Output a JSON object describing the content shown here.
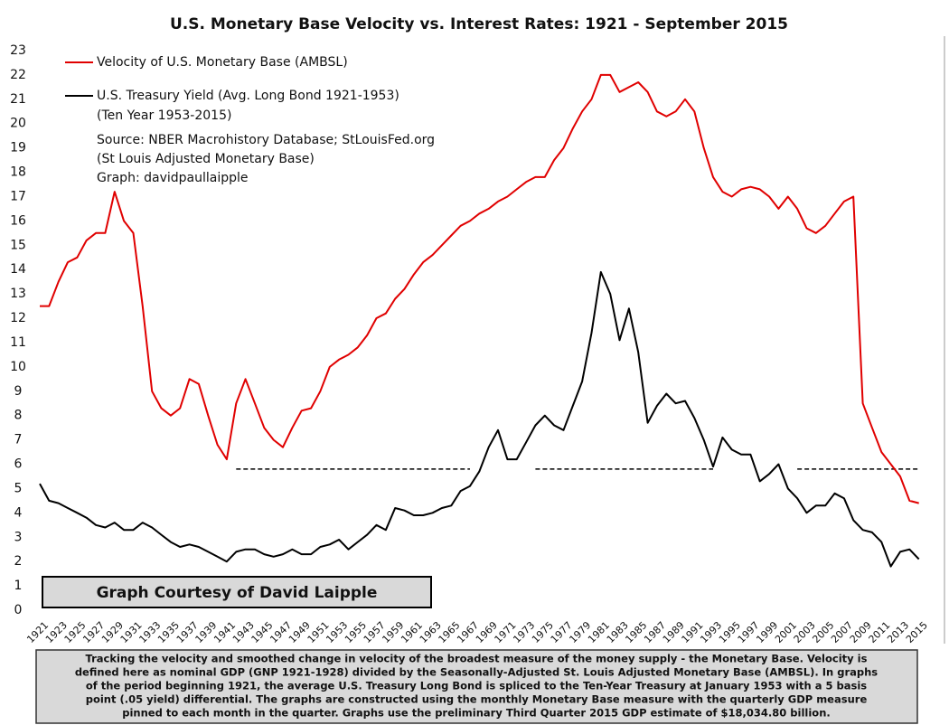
{
  "chart_data": {
    "type": "line",
    "title": "U.S. Monetary Base Velocity vs. Interest Rates: 1921 - September 2015",
    "x": [
      1921,
      1922,
      1923,
      1924,
      1925,
      1926,
      1927,
      1928,
      1929,
      1930,
      1931,
      1932,
      1933,
      1934,
      1935,
      1936,
      1937,
      1938,
      1939,
      1940,
      1941,
      1942,
      1943,
      1944,
      1945,
      1946,
      1947,
      1948,
      1949,
      1950,
      1951,
      1952,
      1953,
      1954,
      1955,
      1956,
      1957,
      1958,
      1959,
      1960,
      1961,
      1962,
      1963,
      1964,
      1965,
      1966,
      1967,
      1968,
      1969,
      1970,
      1971,
      1972,
      1973,
      1974,
      1975,
      1976,
      1977,
      1978,
      1979,
      1980,
      1981,
      1982,
      1983,
      1984,
      1985,
      1986,
      1987,
      1988,
      1989,
      1990,
      1991,
      1992,
      1993,
      1994,
      1995,
      1996,
      1997,
      1998,
      1999,
      2000,
      2001,
      2002,
      2003,
      2004,
      2005,
      2006,
      2007,
      2008,
      2009,
      2010,
      2011,
      2012,
      2013,
      2014,
      2015
    ],
    "series": [
      {
        "name": "Velocity of U.S. Monetary Base (AMBSL)",
        "color": "#e00000",
        "values": [
          12.5,
          12.5,
          13.5,
          14.3,
          14.5,
          15.2,
          15.5,
          15.5,
          17.2,
          16,
          15.5,
          12.5,
          9,
          8.3,
          8,
          8.3,
          9.5,
          9.3,
          8,
          6.8,
          6.2,
          8.5,
          9.5,
          8.5,
          7.5,
          7,
          6.7,
          7.5,
          8.2,
          8.3,
          9,
          10,
          10.3,
          10.5,
          10.8,
          11.3,
          12,
          12.2,
          12.8,
          13.2,
          13.8,
          14.3,
          14.6,
          15,
          15.4,
          15.8,
          16,
          16.3,
          16.5,
          16.8,
          17,
          17.3,
          17.6,
          17.8,
          17.8,
          18.5,
          19,
          19.8,
          20.5,
          21,
          22,
          22,
          21.3,
          21.5,
          21.7,
          21.3,
          20.5,
          20.3,
          20.5,
          21,
          20.5,
          19,
          17.8,
          17.2,
          17,
          17.3,
          17.4,
          17.3,
          17,
          16.5,
          17,
          16.5,
          15.7,
          15.5,
          15.8,
          16.3,
          16.8,
          17,
          8.5,
          7.5,
          6.5,
          6,
          5.5,
          4.5,
          4.4
        ]
      },
      {
        "name": "U.S. Treasury Yield (Avg. Long Bond 1921-1953)",
        "color": "#000000",
        "values": [
          5.2,
          4.5,
          4.4,
          4.2,
          4,
          3.8,
          3.5,
          3.4,
          3.6,
          3.3,
          3.3,
          3.6,
          3.4,
          3.1,
          2.8,
          2.6,
          2.7,
          2.6,
          2.4,
          2.2,
          2,
          2.4,
          2.5,
          2.5,
          2.3,
          2.2,
          2.3,
          2.5,
          2.3,
          2.3,
          2.6,
          2.7,
          2.9,
          2.5,
          2.8,
          3.1,
          3.5,
          3.3,
          4.2,
          4.1,
          3.9,
          3.9,
          4,
          4.2,
          4.3,
          4.9,
          5.1,
          5.7,
          6.7,
          7.4,
          6.2,
          6.2,
          6.9,
          7.6,
          8,
          7.6,
          7.4,
          8.4,
          9.4,
          11.4,
          13.9,
          13,
          11.1,
          12.4,
          10.6,
          7.7,
          8.4,
          8.9,
          8.5,
          8.6,
          7.9,
          7,
          5.9,
          7.1,
          6.6,
          6.4,
          6.4,
          5.3,
          5.6,
          6,
          5,
          4.6,
          4,
          4.3,
          4.3,
          4.8,
          4.6,
          3.7,
          3.3,
          3.2,
          2.8,
          1.8,
          2.4,
          2.5,
          2.1
        ]
      }
    ],
    "legend_note": "(Ten Year 1953-2015)",
    "source_lines": [
      "Source: NBER Macrohistory Database; StLouisFed.org",
      "(St Louis Adjusted Monetary Base)",
      "Graph: davidpaullaipple"
    ],
    "reference_lines": [
      {
        "y": 5.8,
        "x": [
          1942,
          1967
        ]
      },
      {
        "y": 5.8,
        "x": [
          1974,
          1993
        ]
      },
      {
        "y": 5.8,
        "x": [
          2002,
          2015
        ]
      }
    ],
    "xlim": [
      1921,
      2016
    ],
    "xticks": [
      1921,
      1923,
      1925,
      1927,
      1929,
      1931,
      1933,
      1935,
      1937,
      1939,
      1941,
      1943,
      1945,
      1947,
      1949,
      1951,
      1953,
      1955,
      1957,
      1959,
      1961,
      1963,
      1965,
      1967,
      1969,
      1971,
      1973,
      1975,
      1977,
      1979,
      1981,
      1983,
      1985,
      1987,
      1989,
      1991,
      1993,
      1995,
      1997,
      1999,
      2001,
      2003,
      2005,
      2007,
      2009,
      2011,
      2013,
      2015
    ],
    "ylim": [
      0,
      23
    ],
    "yticks": [
      0,
      1,
      2,
      3,
      4,
      5,
      6,
      7,
      8,
      9,
      10,
      11,
      12,
      13,
      14,
      15,
      16,
      17,
      18,
      19,
      20,
      21,
      22,
      23
    ],
    "courtesy": "Graph Courtesy of David Laipple",
    "note_lines": [
      "Tracking the velocity and smoothed change in velocity of the broadest measure of the money supply - the Monetary Base.  Velocity is",
      "defined here as nominal GDP (GNP 1921-1928) divided by the Seasonally-Adjusted St. Louis Adjusted Monetary Base (AMBSL).  In graphs",
      "of the period beginning 1921, the average U.S. Treasury Long Bond is spliced to the Ten-Year Treasury at January 1953 with a 5 basis",
      "point (.05 yield) differential.  The graphs are constructed using the monthly Monetary Base measure with the quarterly GDP measure",
      "pinned to each month in the quarter.  Graphs use the preliminary Third Quarter 2015 GDP estimate of $18,034.80 billion."
    ]
  }
}
